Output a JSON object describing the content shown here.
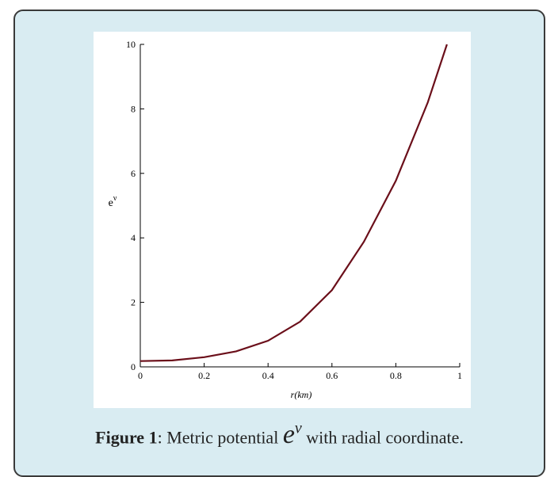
{
  "chart_data": {
    "type": "line",
    "ylabel": {
      "base": "e",
      "sup": "ν"
    },
    "xlabel": "r(km)",
    "x": [
      0,
      0.1,
      0.2,
      0.3,
      0.4,
      0.5,
      0.6,
      0.7,
      0.8,
      0.9,
      0.96
    ],
    "series": [
      {
        "color": "#6b0f1a",
        "values": [
          0.18,
          0.2,
          0.3,
          0.48,
          0.81,
          1.4,
          2.38,
          3.88,
          5.77,
          8.2,
          10
        ]
      }
    ],
    "xlim": [
      0,
      1
    ],
    "ylim": [
      0,
      10
    ],
    "xticks": [
      0,
      0.2,
      0.4,
      0.6,
      0.8,
      1
    ],
    "yticks": [
      0,
      2,
      4,
      6,
      8,
      10
    ]
  },
  "caption": {
    "label": "Figure 1",
    "text": ": Metric potential ",
    "math_base": "e",
    "math_sup": "ν",
    "rest": " with radial coordinate."
  }
}
